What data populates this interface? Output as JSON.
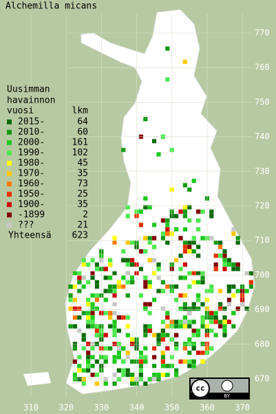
{
  "title": "Alchemilla micans",
  "legend": {
    "heading": [
      "Uusimman",
      "havainnon"
    ],
    "col_headers": [
      "vuosi",
      "lkm"
    ],
    "rows": [
      {
        "label": "2015-",
        "count": 64,
        "color": "#0b6a0b"
      },
      {
        "label": "2010-",
        "count": 60,
        "color": "#159a15"
      },
      {
        "label": "2000-",
        "count": 161,
        "color": "#1ec81e"
      },
      {
        "label": "1990-",
        "count": 102,
        "color": "#4ee84e"
      },
      {
        "label": "1980-",
        "count": 45,
        "color": "#ffff00"
      },
      {
        "label": "1970-",
        "count": 35,
        "color": "#ffc800"
      },
      {
        "label": "1960-",
        "count": 73,
        "color": "#ff7800"
      },
      {
        "label": "1950-",
        "count": 25,
        "color": "#e83000"
      },
      {
        "label": "1900-",
        "count": 35,
        "color": "#cc0000"
      },
      {
        "label": "-1899",
        "count": 2,
        "color": "#800000"
      },
      {
        "label": "???",
        "count": 21,
        "color": "#c8c8c8"
      }
    ],
    "total": {
      "label": "Yhteensä",
      "count": 623
    }
  },
  "grid": {
    "y_labels": [
      770,
      760,
      750,
      740,
      730,
      720,
      710,
      700,
      690,
      680,
      670
    ],
    "x_labels": [
      310,
      320,
      330,
      340,
      350,
      360,
      370
    ]
  },
  "license": [
    "cc",
    "BY"
  ]
}
